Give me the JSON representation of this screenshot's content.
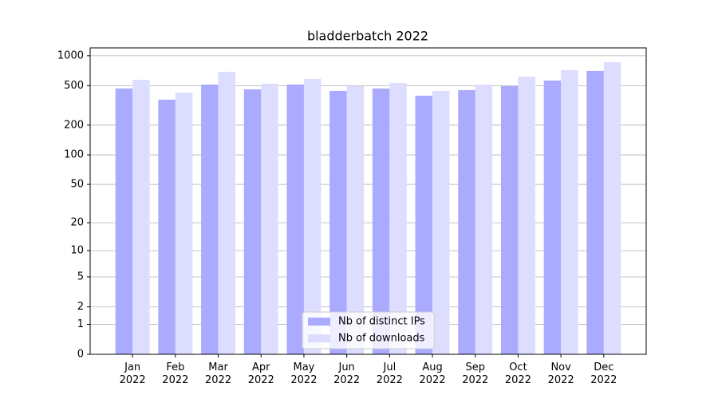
{
  "chart_data": {
    "type": "bar",
    "title": "bladderbatch 2022",
    "categories": [
      "Jan\n2022",
      "Feb\n2022",
      "Mar\n2022",
      "Apr\n2022",
      "May\n2022",
      "Jun\n2022",
      "Jul\n2022",
      "Aug\n2022",
      "Sep\n2022",
      "Oct\n2022",
      "Nov\n2022",
      "Dec\n2022"
    ],
    "series": [
      {
        "name": "Nb of distinct IPs",
        "color": "#aaaaff",
        "values": [
          468,
          361,
          513,
          459,
          513,
          443,
          468,
          396,
          451,
          494,
          563,
          703
        ]
      },
      {
        "name": "Nb of downloads",
        "color": "#ddddff",
        "values": [
          573,
          426,
          690,
          523,
          584,
          494,
          532,
          443,
          513,
          617,
          715,
          860
        ]
      }
    ],
    "yscale": "log1p",
    "ylim": [
      0,
      1200
    ],
    "yticks": [
      0,
      1,
      2,
      5,
      10,
      20,
      50,
      100,
      200,
      500,
      1000
    ],
    "grid": true,
    "legend": "lower center"
  }
}
